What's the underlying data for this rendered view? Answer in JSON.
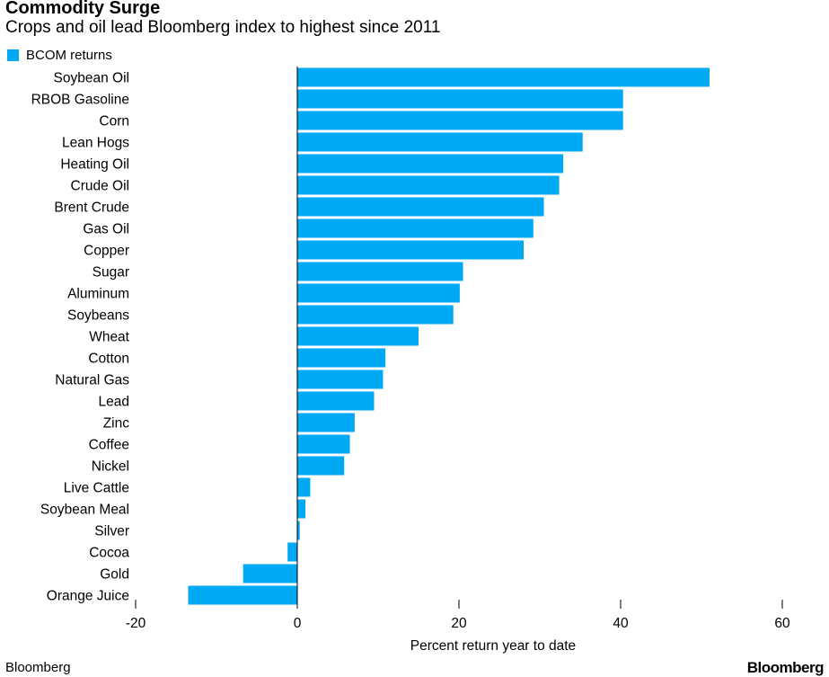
{
  "title": "Commodity Surge",
  "subtitle": "Crops and oil lead Bloomberg index to highest since 2011",
  "footer": {
    "source": "Bloomberg",
    "logo": "Bloomberg"
  },
  "colors": {
    "bar": "#00a9f4",
    "axis": "#000000",
    "text": "#000000"
  },
  "chart_data": {
    "type": "bar",
    "orientation": "horizontal",
    "series": [
      {
        "name": "BCOM returns",
        "values": [
          51,
          40.3,
          40.3,
          35.3,
          32.9,
          32.4,
          30.5,
          29.2,
          28,
          20.5,
          20.1,
          19.3,
          15,
          10.9,
          10.6,
          9.5,
          7.1,
          6.5,
          5.8,
          1.6,
          1,
          0.3,
          -1.2,
          -6.7,
          -13.5
        ]
      }
    ],
    "categories": [
      "Soybean Oil",
      "RBOB Gasoline",
      "Corn",
      "Lean Hogs",
      "Heating Oil",
      "Crude Oil",
      "Brent Crude",
      "Gas Oil",
      "Copper",
      "Sugar",
      "Aluminum",
      "Soybeans",
      "Wheat",
      "Cotton",
      "Natural Gas",
      "Lead",
      "Zinc",
      "Coffee",
      "Nickel",
      "Live Cattle",
      "Soybean Meal",
      "Silver",
      "Cocoa",
      "Gold",
      "Orange Juice"
    ],
    "xlabel": "Percent return year to date",
    "ylabel": "",
    "xlim": [
      -20,
      60
    ],
    "xticks": [
      -20,
      0,
      20,
      40,
      60
    ],
    "legend_position": "top-left",
    "grid": false
  }
}
